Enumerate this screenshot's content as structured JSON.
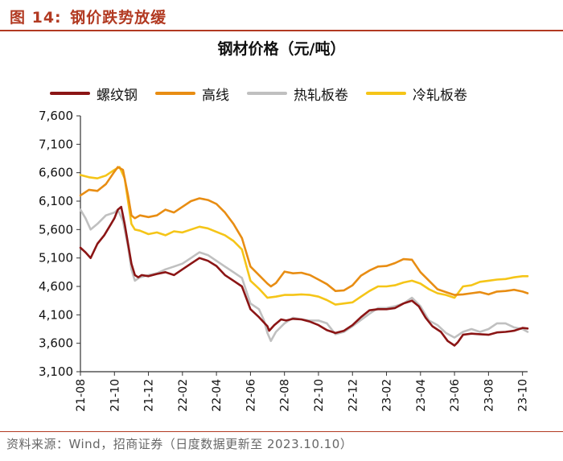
{
  "figure": {
    "label": "图 14:",
    "caption": "钢价跌势放缓"
  },
  "source_note": "资料来源：Wind，招商证券（日度数据更新至 2023.10.10）",
  "colors": {
    "accent": "#b23a22",
    "rebar": "#8b1515",
    "wire_rod": "#e88d13",
    "hot_rolled": "#c0c0c0",
    "cold_rolled": "#f5c518"
  },
  "chart_data": {
    "type": "line",
    "title": "钢材价格（元/吨）",
    "xlabel": "",
    "ylabel": "",
    "ylim": [
      3100,
      7600
    ],
    "yticks": [
      3100,
      3600,
      4100,
      4600,
      5100,
      5600,
      6100,
      6600,
      7100,
      7600
    ],
    "ytick_labels": [
      "3,100",
      "3,600",
      "4,100",
      "4,600",
      "5,100",
      "5,600",
      "6,100",
      "6,600",
      "7,100",
      "7,600"
    ],
    "xlim": [
      0,
      26.3
    ],
    "xticks": [
      0,
      2,
      4,
      6,
      8,
      10,
      12,
      14,
      16,
      18,
      20,
      22,
      24,
      26
    ],
    "xtick_labels": [
      "21-08",
      "21-10",
      "21-12",
      "22-02",
      "22-04",
      "22-06",
      "22-08",
      "22-10",
      "22-12",
      "23-02",
      "23-04",
      "23-06",
      "23-08",
      "23-10"
    ],
    "x_unit_note": "x = months since 2021-08",
    "grid": false,
    "legend_position": "top",
    "series": [
      {
        "name": "螺纹钢",
        "color": "#8b1515",
        "x": [
          0,
          0.3,
          0.6,
          1.0,
          1.4,
          1.8,
          2.0,
          2.2,
          2.4,
          2.6,
          2.8,
          3.0,
          3.2,
          3.4,
          3.6,
          4.0,
          4.5,
          5.0,
          5.5,
          6.0,
          6.5,
          7.0,
          7.5,
          8.0,
          8.5,
          9.0,
          9.5,
          10.0,
          10.5,
          11.0,
          11.1,
          11.4,
          11.8,
          12.1,
          12.5,
          13.0,
          13.5,
          14.0,
          14.5,
          15.0,
          15.5,
          16.0,
          16.5,
          17.0,
          17.5,
          18.0,
          18.5,
          19.0,
          19.5,
          19.9,
          20.3,
          20.7,
          21.2,
          21.6,
          22.0,
          22.2,
          22.5,
          23.0,
          23.5,
          24.0,
          24.5,
          25.0,
          25.5,
          26.0,
          26.3
        ],
        "values": [
          5280,
          5200,
          5100,
          5350,
          5500,
          5700,
          5800,
          5950,
          6000,
          5700,
          5350,
          5000,
          4800,
          4760,
          4800,
          4780,
          4820,
          4850,
          4800,
          4900,
          5000,
          5100,
          5050,
          4960,
          4800,
          4700,
          4600,
          4200,
          4060,
          3900,
          3820,
          3920,
          4020,
          4000,
          4030,
          4020,
          3980,
          3920,
          3830,
          3780,
          3820,
          3920,
          4060,
          4180,
          4200,
          4200,
          4220,
          4300,
          4350,
          4250,
          4050,
          3900,
          3800,
          3640,
          3560,
          3620,
          3750,
          3770,
          3760,
          3750,
          3790,
          3800,
          3820,
          3870,
          3860
        ]
      },
      {
        "name": "高线",
        "color": "#e88d13",
        "x": [
          0,
          0.5,
          1.0,
          1.5,
          2.0,
          2.2,
          2.5,
          2.8,
          3.0,
          3.2,
          3.5,
          4.0,
          4.5,
          5.0,
          5.5,
          6.0,
          6.5,
          7.0,
          7.5,
          8.0,
          8.5,
          9.0,
          9.5,
          10.0,
          10.5,
          11.0,
          11.2,
          11.5,
          12.0,
          12.5,
          13.0,
          13.5,
          14.0,
          14.5,
          15.0,
          15.5,
          16.0,
          16.5,
          17.0,
          17.5,
          18.0,
          18.5,
          19.0,
          19.5,
          20.0,
          20.5,
          21.0,
          21.5,
          22.0,
          22.5,
          23.0,
          23.5,
          24.0,
          24.5,
          25.0,
          25.5,
          26.0,
          26.3
        ],
        "values": [
          6200,
          6300,
          6280,
          6400,
          6620,
          6700,
          6650,
          6200,
          5850,
          5800,
          5850,
          5820,
          5850,
          5950,
          5900,
          6000,
          6100,
          6150,
          6120,
          6050,
          5900,
          5700,
          5450,
          4950,
          4800,
          4650,
          4600,
          4660,
          4860,
          4830,
          4840,
          4800,
          4720,
          4640,
          4520,
          4530,
          4620,
          4790,
          4880,
          4950,
          4960,
          5010,
          5080,
          5070,
          4850,
          4700,
          4550,
          4500,
          4450,
          4460,
          4480,
          4500,
          4460,
          4510,
          4520,
          4540,
          4510,
          4480
        ]
      },
      {
        "name": "热轧板卷",
        "color": "#c0c0c0",
        "x": [
          0,
          0.3,
          0.6,
          1.0,
          1.5,
          2.0,
          2.2,
          2.5,
          2.8,
          3.0,
          3.2,
          3.5,
          4.0,
          4.5,
          5.0,
          5.5,
          6.0,
          6.5,
          7.0,
          7.5,
          8.0,
          8.5,
          9.0,
          9.5,
          10.0,
          10.5,
          10.8,
          11.0,
          11.2,
          11.5,
          12.0,
          12.5,
          13.0,
          13.5,
          14.0,
          14.5,
          15.0,
          15.5,
          16.0,
          16.5,
          17.0,
          17.5,
          18.0,
          18.5,
          19.0,
          19.5,
          20.0,
          20.5,
          21.0,
          21.5,
          22.0,
          22.5,
          23.0,
          23.5,
          24.0,
          24.5,
          25.0,
          25.5,
          26.0,
          26.3
        ],
        "values": [
          5950,
          5800,
          5600,
          5700,
          5850,
          5900,
          5950,
          5750,
          5300,
          4900,
          4700,
          4760,
          4800,
          4830,
          4900,
          4950,
          5000,
          5100,
          5200,
          5150,
          5050,
          4950,
          4850,
          4750,
          4300,
          4200,
          4000,
          3780,
          3640,
          3800,
          3950,
          4050,
          4020,
          4000,
          4000,
          3950,
          3760,
          3800,
          3900,
          4010,
          4120,
          4220,
          4220,
          4250,
          4300,
          4400,
          4250,
          4000,
          3920,
          3780,
          3700,
          3800,
          3850,
          3800,
          3850,
          3950,
          3950,
          3880,
          3850,
          3800
        ]
      },
      {
        "name": "冷轧板卷",
        "color": "#f5c518",
        "x": [
          0,
          0.5,
          1.0,
          1.5,
          2.0,
          2.3,
          2.6,
          2.8,
          3.0,
          3.2,
          3.5,
          4.0,
          4.5,
          5.0,
          5.5,
          6.0,
          6.5,
          7.0,
          7.5,
          8.0,
          8.5,
          9.0,
          9.5,
          10.0,
          10.5,
          11.0,
          11.5,
          12.0,
          12.5,
          13.0,
          13.5,
          14.0,
          14.5,
          15.0,
          15.5,
          16.0,
          16.5,
          17.0,
          17.5,
          18.0,
          18.5,
          19.0,
          19.5,
          20.0,
          20.5,
          21.0,
          21.5,
          22.0,
          22.5,
          23.0,
          23.5,
          24.0,
          24.5,
          25.0,
          25.5,
          26.0,
          26.3
        ],
        "values": [
          6560,
          6520,
          6500,
          6550,
          6650,
          6700,
          6500,
          6100,
          5700,
          5600,
          5580,
          5520,
          5550,
          5500,
          5570,
          5550,
          5600,
          5650,
          5620,
          5560,
          5500,
          5400,
          5250,
          4700,
          4560,
          4400,
          4420,
          4450,
          4450,
          4460,
          4450,
          4420,
          4360,
          4280,
          4300,
          4320,
          4420,
          4520,
          4600,
          4600,
          4620,
          4670,
          4700,
          4650,
          4550,
          4480,
          4450,
          4400,
          4600,
          4620,
          4680,
          4700,
          4720,
          4730,
          4760,
          4780,
          4780
        ]
      }
    ]
  }
}
